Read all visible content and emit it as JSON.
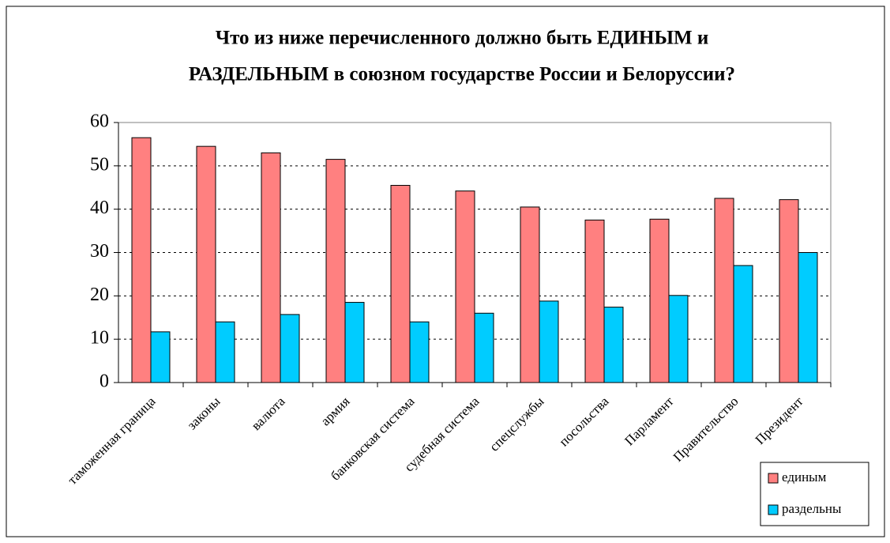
{
  "chart_data": {
    "type": "bar",
    "title": "Что из ниже перечисленного должно быть ЕДИНЫМ и РАЗДЕЛЬНЫМ в союзном государстве России и Белоруссии?",
    "categories": [
      "таможенная граница",
      "законы",
      "валюта",
      "армия",
      "банковская система",
      "судебная система",
      "спецслужбы",
      "посольства",
      "Парламент",
      "Правительство",
      "Президент"
    ],
    "series": [
      {
        "name": "единым",
        "color": "#ff8080",
        "values": [
          56.5,
          54.5,
          53,
          51.5,
          45.5,
          44.2,
          40.5,
          37.5,
          37.7,
          42.5,
          42.2
        ]
      },
      {
        "name": "раздельны",
        "color": "#00ccff",
        "values": [
          11.7,
          14,
          15.7,
          18.5,
          14,
          16,
          18.8,
          17.4,
          20.1,
          27,
          30
        ]
      }
    ],
    "ylim": [
      0,
      60
    ],
    "yticks": [
      0,
      10,
      20,
      30,
      40,
      50,
      60
    ],
    "grid": true,
    "legend": "bottom-right"
  }
}
